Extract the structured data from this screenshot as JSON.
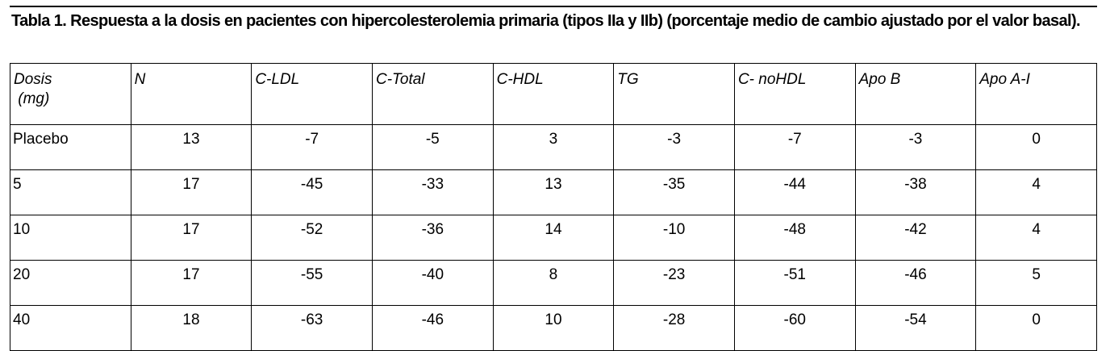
{
  "title": "Tabla 1. Respuesta a la dosis en pacientes con hipercolesterolemia primaria (tipos IIa y IIb) (porcentaje medio de cambio ajustado por el valor basal).",
  "table": {
    "header": [
      "Dosis\n (mg)",
      "N",
      "C-LDL",
      "C-Total",
      "C-HDL",
      "TG",
      "C- noHDL",
      "Apo B",
      "Apo A-I"
    ],
    "rows": [
      [
        "Placebo",
        "13",
        "-7",
        "-5",
        "3",
        "-3",
        "-7",
        "-3",
        "0"
      ],
      [
        "5",
        "17",
        "-45",
        "-33",
        "13",
        "-35",
        "-44",
        "-38",
        "4"
      ],
      [
        "10",
        "17",
        "-52",
        "-36",
        "14",
        "-10",
        "-48",
        "-42",
        "4"
      ],
      [
        "20",
        "17",
        "-55",
        "-40",
        "8",
        "-23",
        "-51",
        "-46",
        "5"
      ],
      [
        "40",
        "18",
        "-63",
        "-46",
        "10",
        "-28",
        "-60",
        "-54",
        "0"
      ]
    ]
  }
}
